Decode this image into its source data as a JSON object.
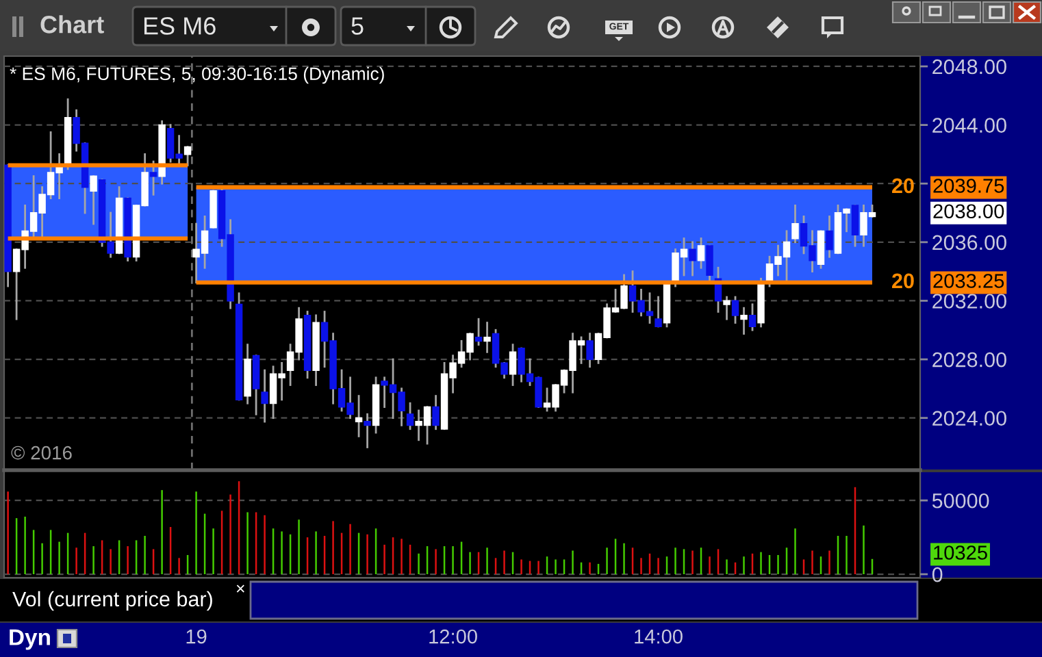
{
  "chart_data": [
    {
      "type": "other",
      "annotations": [
        "Chart",
        "ES M6",
        "5",
        "GET"
      ]
    },
    {
      "type": "candlestick",
      "title": "* ES M6, FUTURES, 5, 09:30-16:15 (Dynamic)",
      "categories": [
        null,
        null,
        null,
        null,
        null,
        null,
        null,
        null,
        null,
        null,
        null,
        null,
        null,
        null,
        null,
        null,
        null,
        null,
        null,
        null,
        null,
        null,
        "19",
        null,
        null,
        null,
        null,
        null,
        null,
        null,
        null,
        null,
        null,
        null,
        null,
        null,
        null,
        null,
        null,
        null,
        null,
        null,
        null,
        null,
        null,
        null,
        null,
        null,
        null,
        null,
        null,
        null,
        "12:00",
        null,
        null,
        null,
        null,
        null,
        null,
        null,
        null,
        null,
        null,
        null,
        null,
        null,
        null,
        null,
        null,
        null,
        null,
        null,
        null,
        null,
        null,
        null,
        "14:00",
        null,
        null,
        null,
        null,
        null,
        null,
        null,
        null,
        null,
        null,
        null,
        null,
        null,
        null,
        null,
        null,
        null,
        null,
        null,
        null,
        null,
        null,
        null,
        null,
        null
      ],
      "ohlc": [
        [
          2041.25,
          2041.25,
          2033.0,
          2034.0
        ],
        [
          2034.0,
          2035.5,
          2030.75,
          2035.5
        ],
        [
          2035.5,
          2038.5,
          2034.25,
          2036.75
        ],
        [
          2036.75,
          2040.5,
          2036.25,
          2038.0
        ],
        [
          2038.0,
          2039.75,
          2036.25,
          2039.25
        ],
        [
          2039.25,
          2043.5,
          2039.0,
          2040.75
        ],
        [
          2040.75,
          2042.0,
          2039.0,
          2041.25
        ],
        [
          2041.25,
          2045.75,
          2041.0,
          2044.5
        ],
        [
          2044.5,
          2045.0,
          2042.25,
          2042.75
        ],
        [
          2042.75,
          2042.75,
          2038.0,
          2039.75
        ],
        [
          2039.5,
          2040.5,
          2037.25,
          2040.5
        ],
        [
          2040.25,
          2040.25,
          2035.75,
          2036.0
        ],
        [
          2036.0,
          2038.0,
          2035.0,
          2035.25
        ],
        [
          2035.25,
          2039.75,
          2035.25,
          2039.0
        ],
        [
          2039.0,
          2039.0,
          2034.75,
          2035.0
        ],
        [
          2035.0,
          2038.5,
          2034.75,
          2038.5
        ],
        [
          2038.5,
          2042.0,
          2038.5,
          2040.75
        ],
        [
          2040.75,
          2041.5,
          2039.25,
          2040.5
        ],
        [
          2040.5,
          2044.25,
          2040.0,
          2044.0
        ],
        [
          2043.75,
          2044.0,
          2041.5,
          2041.75
        ],
        [
          2042.0,
          2043.25,
          2041.25,
          2041.75
        ],
        [
          2042.0,
          2042.5,
          2041.25,
          2042.5
        ],
        [
          2035.0,
          2037.25,
          2033.25,
          2035.5
        ],
        [
          2035.25,
          2037.75,
          2034.25,
          2036.75
        ],
        [
          2037.0,
          2039.5,
          2037.0,
          2039.5
        ],
        [
          2039.5,
          2039.75,
          2035.75,
          2036.25
        ],
        [
          2036.5,
          2037.5,
          2031.5,
          2032.0
        ],
        [
          2031.75,
          2032.5,
          2025.25,
          2025.25
        ],
        [
          2025.5,
          2029.0,
          2025.0,
          2028.0
        ],
        [
          2028.25,
          2028.25,
          2024.25,
          2026.0
        ],
        [
          2025.75,
          2027.25,
          2023.75,
          2025.0
        ],
        [
          2025.0,
          2027.5,
          2024.0,
          2027.0
        ],
        [
          2026.75,
          2027.75,
          2025.25,
          2027.0
        ],
        [
          2027.25,
          2029.0,
          2026.25,
          2028.5
        ],
        [
          2028.5,
          2031.5,
          2028.0,
          2030.75
        ],
        [
          2031.0,
          2031.25,
          2026.75,
          2027.25
        ],
        [
          2027.25,
          2031.0,
          2026.25,
          2030.5
        ],
        [
          2030.5,
          2031.25,
          2027.5,
          2029.25
        ],
        [
          2029.25,
          2029.75,
          2025.0,
          2026.0
        ],
        [
          2026.0,
          2027.25,
          2024.5,
          2024.75
        ],
        [
          2025.0,
          2026.75,
          2024.0,
          2024.25
        ],
        [
          2023.75,
          2025.5,
          2022.75,
          2024.0
        ],
        [
          2023.75,
          2024.25,
          2022.0,
          2023.5
        ],
        [
          2023.5,
          2026.75,
          2023.0,
          2026.25
        ],
        [
          2026.5,
          2026.75,
          2024.75,
          2026.25
        ],
        [
          2026.25,
          2028.0,
          2024.0,
          2025.75
        ],
        [
          2025.75,
          2026.0,
          2023.5,
          2024.5
        ],
        [
          2024.25,
          2025.0,
          2023.25,
          2023.5
        ],
        [
          2023.5,
          2024.5,
          2022.5,
          2023.75
        ],
        [
          2023.5,
          2024.75,
          2022.25,
          2024.75
        ],
        [
          2024.75,
          2025.5,
          2023.25,
          2023.5
        ],
        [
          2023.25,
          2027.75,
          2023.25,
          2027.0
        ],
        [
          2026.75,
          2028.25,
          2025.75,
          2027.75
        ],
        [
          2027.75,
          2029.25,
          2027.5,
          2028.5
        ],
        [
          2028.5,
          2029.75,
          2028.0,
          2029.75
        ],
        [
          2029.5,
          2030.75,
          2029.0,
          2029.25
        ],
        [
          2029.25,
          2030.5,
          2028.5,
          2029.5
        ],
        [
          2029.75,
          2030.0,
          2027.5,
          2027.75
        ],
        [
          2027.75,
          2027.75,
          2026.75,
          2027.0
        ],
        [
          2027.0,
          2029.0,
          2026.25,
          2028.5
        ],
        [
          2028.75,
          2028.75,
          2026.5,
          2027.0
        ],
        [
          2027.0,
          2028.0,
          2026.25,
          2026.5
        ],
        [
          2026.75,
          2026.75,
          2024.75,
          2024.75
        ],
        [
          2024.75,
          2026.0,
          2024.5,
          2025.0
        ],
        [
          2024.75,
          2026.25,
          2024.5,
          2026.25
        ],
        [
          2026.25,
          2027.25,
          2025.75,
          2027.25
        ],
        [
          2027.25,
          2029.75,
          2025.75,
          2029.25
        ],
        [
          2029.0,
          2029.5,
          2027.75,
          2029.25
        ],
        [
          2029.25,
          2029.75,
          2027.5,
          2028.0
        ],
        [
          2028.0,
          2029.75,
          2027.75,
          2029.75
        ],
        [
          2029.5,
          2031.75,
          2029.5,
          2031.5
        ],
        [
          2031.25,
          2032.75,
          2031.25,
          2031.5
        ],
        [
          2031.5,
          2033.75,
          2031.5,
          2033.0
        ],
        [
          2033.0,
          2034.0,
          2031.25,
          2032.0
        ],
        [
          2032.0,
          2032.75,
          2031.0,
          2031.25
        ],
        [
          2031.25,
          2032.5,
          2030.5,
          2031.0
        ],
        [
          2030.75,
          2032.25,
          2030.25,
          2030.25
        ],
        [
          2030.5,
          2033.25,
          2030.25,
          2033.25
        ],
        [
          2033.25,
          2035.5,
          2033.0,
          2035.25
        ],
        [
          2035.0,
          2036.25,
          2033.75,
          2035.5
        ],
        [
          2035.5,
          2036.0,
          2033.75,
          2034.75
        ],
        [
          2034.75,
          2036.25,
          2034.25,
          2035.75
        ],
        [
          2035.75,
          2035.75,
          2033.25,
          2033.75
        ],
        [
          2033.5,
          2034.25,
          2031.25,
          2032.0
        ],
        [
          2031.75,
          2032.25,
          2030.75,
          2032.0
        ],
        [
          2032.0,
          2032.25,
          2030.5,
          2031.0
        ],
        [
          2030.75,
          2031.5,
          2029.75,
          2031.0
        ],
        [
          2031.0,
          2031.75,
          2030.0,
          2030.25
        ],
        [
          2030.5,
          2033.5,
          2030.25,
          2033.25
        ],
        [
          2033.25,
          2035.0,
          2033.0,
          2034.5
        ],
        [
          2034.5,
          2035.75,
          2033.75,
          2035.0
        ],
        [
          2035.0,
          2036.75,
          2033.25,
          2036.0
        ],
        [
          2036.25,
          2038.5,
          2036.0,
          2037.25
        ],
        [
          2037.25,
          2037.75,
          2035.25,
          2035.75
        ],
        [
          2035.75,
          2036.75,
          2034.0,
          2034.75
        ],
        [
          2034.5,
          2036.75,
          2034.25,
          2036.75
        ],
        [
          2036.75,
          2037.75,
          2035.0,
          2035.5
        ],
        [
          2035.25,
          2038.5,
          2035.25,
          2038.0
        ],
        [
          2038.0,
          2038.25,
          2036.75,
          2038.25
        ],
        [
          2038.5,
          2038.5,
          2035.75,
          2036.5
        ],
        [
          2036.5,
          2038.5,
          2035.75,
          2038.0
        ],
        [
          2037.75,
          2038.5,
          2037.75,
          2038.0
        ]
      ],
      "series": [
        {
          "type": "line",
          "color": "#ff8000",
          "values": [
            2041.25,
            2041.25,
            2041.25,
            2041.25,
            2041.25,
            2041.25,
            2041.25,
            2041.25,
            2041.25,
            2041.25,
            2041.25,
            2041.25,
            2041.25,
            2041.25,
            2041.25,
            2041.25,
            2041.25,
            2041.25,
            2041.25,
            2041.25,
            2041.25,
            2041.25,
            null,
            null,
            null,
            null,
            null,
            null,
            null,
            null,
            null,
            null,
            null,
            null,
            null,
            null,
            null,
            null,
            null,
            null,
            null,
            null,
            null,
            null,
            null,
            null,
            null,
            null,
            null,
            null,
            null,
            null,
            null,
            null,
            null,
            null,
            null,
            null,
            null,
            null,
            null,
            null,
            null,
            null,
            null,
            null,
            null,
            null,
            null,
            null,
            null,
            null,
            null,
            null,
            null,
            null,
            null,
            null,
            null,
            null,
            null,
            null,
            null,
            null,
            null,
            null,
            null,
            null,
            null,
            null,
            null,
            null,
            null,
            null,
            null,
            null,
            null,
            null,
            null,
            null,
            null,
            null
          ],
          "lower": [
            2036.25,
            2036.25,
            2036.25,
            2036.25,
            2036.25,
            2036.25,
            2036.25,
            2036.25,
            2036.25,
            2036.25,
            2036.25,
            2036.25,
            2036.25,
            2036.25,
            2036.25,
            2036.25,
            2036.25,
            2036.25,
            2036.25,
            2036.25,
            2036.25,
            2036.25,
            null,
            null,
            null,
            null,
            null,
            null,
            null,
            null,
            null,
            null,
            null,
            null,
            null,
            null,
            null,
            null,
            null,
            null,
            null,
            null,
            null,
            null,
            null,
            null,
            null,
            null,
            null,
            null,
            null,
            null,
            null,
            null,
            null,
            null,
            null,
            null,
            null,
            null,
            null,
            null,
            null,
            null,
            null,
            null,
            null,
            null,
            null,
            null,
            null,
            null,
            null,
            null,
            null,
            null,
            null,
            null,
            null,
            null,
            null,
            null,
            null,
            null,
            null,
            null,
            null,
            null,
            null,
            null,
            null,
            null,
            null,
            null,
            null,
            null,
            null,
            null,
            null,
            null,
            null,
            null
          ],
          "upper": [
            2041.25,
            2041.25,
            2041.25,
            2041.25,
            2041.25,
            2041.25,
            2041.25,
            2041.25,
            2041.25,
            2041.25,
            2041.25,
            2041.25,
            2041.25,
            2041.25,
            2041.25,
            2041.25,
            2041.25,
            2041.25,
            2041.25,
            2041.25,
            2041.25,
            2041.25,
            null,
            null,
            null,
            null,
            null,
            null,
            null,
            null,
            null,
            null,
            null,
            null,
            null,
            null,
            null,
            null,
            null,
            null,
            null,
            null,
            null,
            null,
            null,
            null,
            null,
            null,
            null,
            null,
            null,
            null,
            null,
            null,
            null,
            null,
            null,
            null,
            null,
            null,
            null,
            null,
            null,
            null,
            null,
            null,
            null,
            null,
            null,
            null,
            null,
            null,
            null,
            null,
            null,
            null,
            null,
            null,
            null,
            null,
            null,
            null,
            null,
            null,
            null,
            null,
            null,
            null,
            null,
            null,
            null,
            null,
            null,
            null,
            null,
            null,
            null,
            null,
            null,
            null,
            null,
            null
          ]
        },
        {
          "type": "line",
          "color": "#ff8000",
          "values": [
            2036.25,
            2036.25,
            2036.25,
            2036.25,
            2036.25,
            2036.25,
            2036.25,
            2036.25,
            2036.25,
            2036.25,
            2036.25,
            2036.25,
            2036.25,
            2036.25,
            2036.25,
            2036.25,
            2036.25,
            2036.25,
            2036.25,
            2036.25,
            2036.25,
            2036.25,
            null,
            null,
            null,
            null,
            null,
            null,
            null,
            null,
            null,
            null,
            null,
            null,
            null,
            null,
            null,
            null,
            null,
            null,
            null,
            null,
            null,
            null,
            null,
            null,
            null,
            null,
            null,
            null,
            null,
            null,
            null,
            null,
            null,
            null,
            null,
            null,
            null,
            null,
            null,
            null,
            null,
            null,
            null,
            null,
            null,
            null,
            null,
            null,
            null,
            null,
            null,
            null,
            null,
            null,
            null,
            null,
            null,
            null,
            null,
            null,
            null,
            null,
            null,
            null,
            null,
            null,
            null,
            null,
            null,
            null,
            null,
            null,
            null,
            null,
            null,
            null,
            null,
            null,
            null,
            null
          ]
        },
        {
          "type": "line",
          "color": "#ff8000",
          "values": [
            null,
            null,
            null,
            null,
            null,
            null,
            null,
            null,
            null,
            null,
            null,
            null,
            null,
            null,
            null,
            null,
            null,
            null,
            null,
            null,
            null,
            null,
            2039.75,
            2039.75,
            2039.75,
            2039.75,
            2039.75,
            2039.75,
            2039.75,
            2039.75,
            2039.75,
            2039.75,
            2039.75,
            2039.75,
            2039.75,
            2039.75,
            2039.75,
            2039.75,
            2039.75,
            2039.75,
            2039.75,
            2039.75,
            2039.75,
            2039.75,
            2039.75,
            2039.75,
            2039.75,
            2039.75,
            2039.75,
            2039.75,
            2039.75,
            2039.75,
            2039.75,
            2039.75,
            2039.75,
            2039.75,
            2039.75,
            2039.75,
            2039.75,
            2039.75,
            2039.75,
            2039.75,
            2039.75,
            2039.75,
            2039.75,
            2039.75,
            2039.75,
            2039.75,
            2039.75,
            2039.75,
            2039.75,
            2039.75,
            2039.75,
            2039.75,
            2039.75,
            2039.75,
            2039.75,
            2039.75,
            2039.75,
            2039.75,
            2039.75,
            2039.75,
            2039.75,
            2039.75,
            2039.75,
            2039.75,
            2039.75,
            2039.75,
            2039.75,
            2039.75,
            2039.75,
            2039.75,
            2039.75,
            2039.75,
            2039.75,
            2039.75,
            2039.75,
            2039.75,
            2039.75,
            2039.75,
            2039.75,
            2039.75
          ],
          "lower": [
            null,
            null,
            null,
            null,
            null,
            null,
            null,
            null,
            null,
            null,
            null,
            null,
            null,
            null,
            null,
            null,
            null,
            null,
            null,
            null,
            null,
            null,
            2033.25,
            2033.25,
            2033.25,
            2033.25,
            2033.25,
            2033.25,
            2033.25,
            2033.25,
            2033.25,
            2033.25,
            2033.25,
            2033.25,
            2033.25,
            2033.25,
            2033.25,
            2033.25,
            2033.25,
            2033.25,
            2033.25,
            2033.25,
            2033.25,
            2033.25,
            2033.25,
            2033.25,
            2033.25,
            2033.25,
            2033.25,
            2033.25,
            2033.25,
            2033.25,
            2033.25,
            2033.25,
            2033.25,
            2033.25,
            2033.25,
            2033.25,
            2033.25,
            2033.25,
            2033.25,
            2033.25,
            2033.25,
            2033.25,
            2033.25,
            2033.25,
            2033.25,
            2033.25,
            2033.25,
            2033.25,
            2033.25,
            2033.25,
            2033.25,
            2033.25,
            2033.25,
            2033.25,
            2033.25,
            2033.25,
            2033.25,
            2033.25,
            2033.25,
            2033.25,
            2033.25,
            2033.25,
            2033.25,
            2033.25,
            2033.25,
            2033.25,
            2033.25,
            2033.25,
            2033.25,
            2033.25,
            2033.25,
            2033.25,
            2033.25,
            2033.25,
            2033.25,
            2033.25,
            2033.25,
            2033.25,
            2033.25,
            2033.25
          ],
          "upper": [
            null,
            null,
            null,
            null,
            null,
            null,
            null,
            null,
            null,
            null,
            null,
            null,
            null,
            null,
            null,
            null,
            null,
            null,
            null,
            null,
            null,
            null,
            2039.75,
            2039.75,
            2039.75,
            2039.75,
            2039.75,
            2039.75,
            2039.75,
            2039.75,
            2039.75,
            2039.75,
            2039.75,
            2039.75,
            2039.75,
            2039.75,
            2039.75,
            2039.75,
            2039.75,
            2039.75,
            2039.75,
            2039.75,
            2039.75,
            2039.75,
            2039.75,
            2039.75,
            2039.75,
            2039.75,
            2039.75,
            2039.75,
            2039.75,
            2039.75,
            2039.75,
            2039.75,
            2039.75,
            2039.75,
            2039.75,
            2039.75,
            2039.75,
            2039.75,
            2039.75,
            2039.75,
            2039.75,
            2039.75,
            2039.75,
            2039.75,
            2039.75,
            2039.75,
            2039.75,
            2039.75,
            2039.75,
            2039.75,
            2039.75,
            2039.75,
            2039.75,
            2039.75,
            2039.75,
            2039.75,
            2039.75,
            2039.75,
            2039.75,
            2039.75,
            2039.75,
            2039.75,
            2039.75,
            2039.75,
            2039.75,
            2039.75,
            2039.75,
            2039.75,
            2039.75,
            2039.75,
            2039.75,
            2039.75,
            2039.75,
            2039.75,
            2039.75,
            2039.75,
            2039.75,
            2039.75,
            2039.75,
            2039.75
          ]
        },
        {
          "type": "line",
          "color": "#ff8000",
          "values": [
            null,
            null,
            null,
            null,
            null,
            null,
            null,
            null,
            null,
            null,
            null,
            null,
            null,
            null,
            null,
            null,
            null,
            null,
            null,
            null,
            null,
            null,
            2033.25,
            2033.25,
            2033.25,
            2033.25,
            2033.25,
            2033.25,
            2033.25,
            2033.25,
            2033.25,
            2033.25,
            2033.25,
            2033.25,
            2033.25,
            2033.25,
            2033.25,
            2033.25,
            2033.25,
            2033.25,
            2033.25,
            2033.25,
            2033.25,
            2033.25,
            2033.25,
            2033.25,
            2033.25,
            2033.25,
            2033.25,
            2033.25,
            2033.25,
            2033.25,
            2033.25,
            2033.25,
            2033.25,
            2033.25,
            2033.25,
            2033.25,
            2033.25,
            2033.25,
            2033.25,
            2033.25,
            2033.25,
            2033.25,
            2033.25,
            2033.25,
            2033.25,
            2033.25,
            2033.25,
            2033.25,
            2033.25,
            2033.25,
            2033.25,
            2033.25,
            2033.25,
            2033.25,
            2033.25,
            2033.25,
            2033.25,
            2033.25,
            2033.25,
            2033.25,
            2033.25,
            2033.25,
            2033.25,
            2033.25,
            2033.25,
            2033.25,
            2033.25,
            2033.25,
            2033.25,
            2033.25,
            2033.25,
            2033.25,
            2033.25,
            2033.25,
            2033.25,
            2033.25,
            2033.25,
            2033.25,
            2033.25,
            2033.25
          ]
        }
      ],
      "ylim": [
        2013.1,
        2048.7
      ],
      "yticks": [
        {
          "value": 2024,
          "label": "2024.00"
        },
        {
          "value": 2028,
          "label": "2028.00"
        },
        {
          "value": 2032,
          "label": "2032.00"
        },
        {
          "value": 2036,
          "label": "2036.00"
        },
        {
          "value": 2040,
          "label": null
        },
        {
          "value": 2044,
          "label": "2044.00"
        },
        {
          "value": 2048,
          "label": "2048.00"
        }
      ],
      "grid": "y",
      "ref_lines": [
        {
          "axis": "x",
          "value": "19",
          "color": "#6e6e6e",
          "line_style": "dashed"
        }
      ],
      "annotations": [
        "20",
        "2039.75",
        "2038.00",
        "20",
        "2033.25",
        "© 2016"
      ]
    },
    {
      "type": "bar",
      "title": "Vol (current price bar)",
      "categories": [
        null,
        null,
        null,
        null,
        null,
        null,
        null,
        null,
        null,
        null,
        null,
        null,
        null,
        null,
        null,
        null,
        null,
        null,
        null,
        null,
        null,
        null,
        null,
        null,
        null,
        null,
        null,
        null,
        null,
        null,
        null,
        null,
        null,
        null,
        null,
        null,
        null,
        null,
        null,
        null,
        null,
        null,
        null,
        null,
        null,
        null,
        null,
        null,
        null,
        null,
        null,
        null,
        null,
        null,
        null,
        null,
        null,
        null,
        null,
        null,
        null,
        null,
        null,
        null,
        null,
        null,
        null,
        null,
        null,
        null,
        null,
        null,
        null,
        null,
        null,
        null,
        null,
        null,
        null,
        null,
        null,
        null,
        null,
        null,
        null,
        null,
        null,
        null,
        null,
        null,
        null,
        null,
        null,
        null,
        null,
        null,
        null,
        null,
        null,
        null,
        null,
        null
      ],
      "values": [
        56000,
        38000,
        39000,
        30000,
        21000,
        30000,
        22000,
        28000,
        18000,
        28000,
        19000,
        23000,
        17000,
        23000,
        19000,
        23000,
        26000,
        17000,
        57000,
        32000,
        11000,
        13000,
        56000,
        41000,
        31000,
        43000,
        54000,
        63000,
        42000,
        42000,
        40000,
        31000,
        29000,
        27000,
        37000,
        25000,
        29000,
        26000,
        36000,
        28000,
        34000,
        28000,
        27000,
        31000,
        20000,
        25000,
        24000,
        20000,
        14000,
        19000,
        17000,
        19000,
        19000,
        22000,
        15000,
        15000,
        18000,
        11000,
        16000,
        15000,
        10000,
        9000,
        9000,
        12000,
        10000,
        10000,
        16000,
        8000,
        8000,
        7000,
        18000,
        24000,
        21000,
        18000,
        11000,
        14000,
        11000,
        12000,
        18000,
        17000,
        16000,
        18000,
        12000,
        17000,
        10000,
        8000,
        12000,
        14000,
        15000,
        13000,
        13000,
        18000,
        31000,
        10000,
        16000,
        12000,
        16000,
        26000,
        26000,
        59000,
        33000,
        10325
      ],
      "colors": [
        "#dd1111",
        "#44cc00",
        "#44cc00",
        "#44cc00",
        "#44cc00",
        "#44cc00",
        "#44cc00",
        "#44cc00",
        "#dd1111",
        "#dd1111",
        "#44cc00",
        "#dd1111",
        "#dd1111",
        "#44cc00",
        "#dd1111",
        "#44cc00",
        "#44cc00",
        "#dd1111",
        "#44cc00",
        "#dd1111",
        "#dd1111",
        "#44cc00",
        "#44cc00",
        "#44cc00",
        "#44cc00",
        "#dd1111",
        "#dd1111",
        "#dd1111",
        "#44cc00",
        "#dd1111",
        "#dd1111",
        "#44cc00",
        "#44cc00",
        "#44cc00",
        "#44cc00",
        "#dd1111",
        "#44cc00",
        "#dd1111",
        "#dd1111",
        "#dd1111",
        "#dd1111",
        "#44cc00",
        "#dd1111",
        "#44cc00",
        "#dd1111",
        "#dd1111",
        "#dd1111",
        "#dd1111",
        "#44cc00",
        "#44cc00",
        "#dd1111",
        "#44cc00",
        "#44cc00",
        "#44cc00",
        "#44cc00",
        "#dd1111",
        "#44cc00",
        "#dd1111",
        "#dd1111",
        "#44cc00",
        "#dd1111",
        "#dd1111",
        "#dd1111",
        "#44cc00",
        "#44cc00",
        "#44cc00",
        "#44cc00",
        "#44cc00",
        "#dd1111",
        "#44cc00",
        "#44cc00",
        "#44cc00",
        "#44cc00",
        "#dd1111",
        "#dd1111",
        "#dd1111",
        "#dd1111",
        "#44cc00",
        "#44cc00",
        "#44cc00",
        "#dd1111",
        "#44cc00",
        "#dd1111",
        "#dd1111",
        "#44cc00",
        "#dd1111",
        "#44cc00",
        "#dd1111",
        "#44cc00",
        "#44cc00",
        "#44cc00",
        "#44cc00",
        "#44cc00",
        "#dd1111",
        "#dd1111",
        "#44cc00",
        "#dd1111",
        "#44cc00",
        "#44cc00",
        "#dd1111",
        "#44cc00",
        "#44cc00"
      ],
      "ylim": [
        -2300,
        70500
      ],
      "yticks": [
        0,
        50000
      ],
      "grid": "y",
      "tick_labels": "y",
      "annotations": [
        "×",
        "Dyn",
        "10325"
      ]
    }
  ]
}
